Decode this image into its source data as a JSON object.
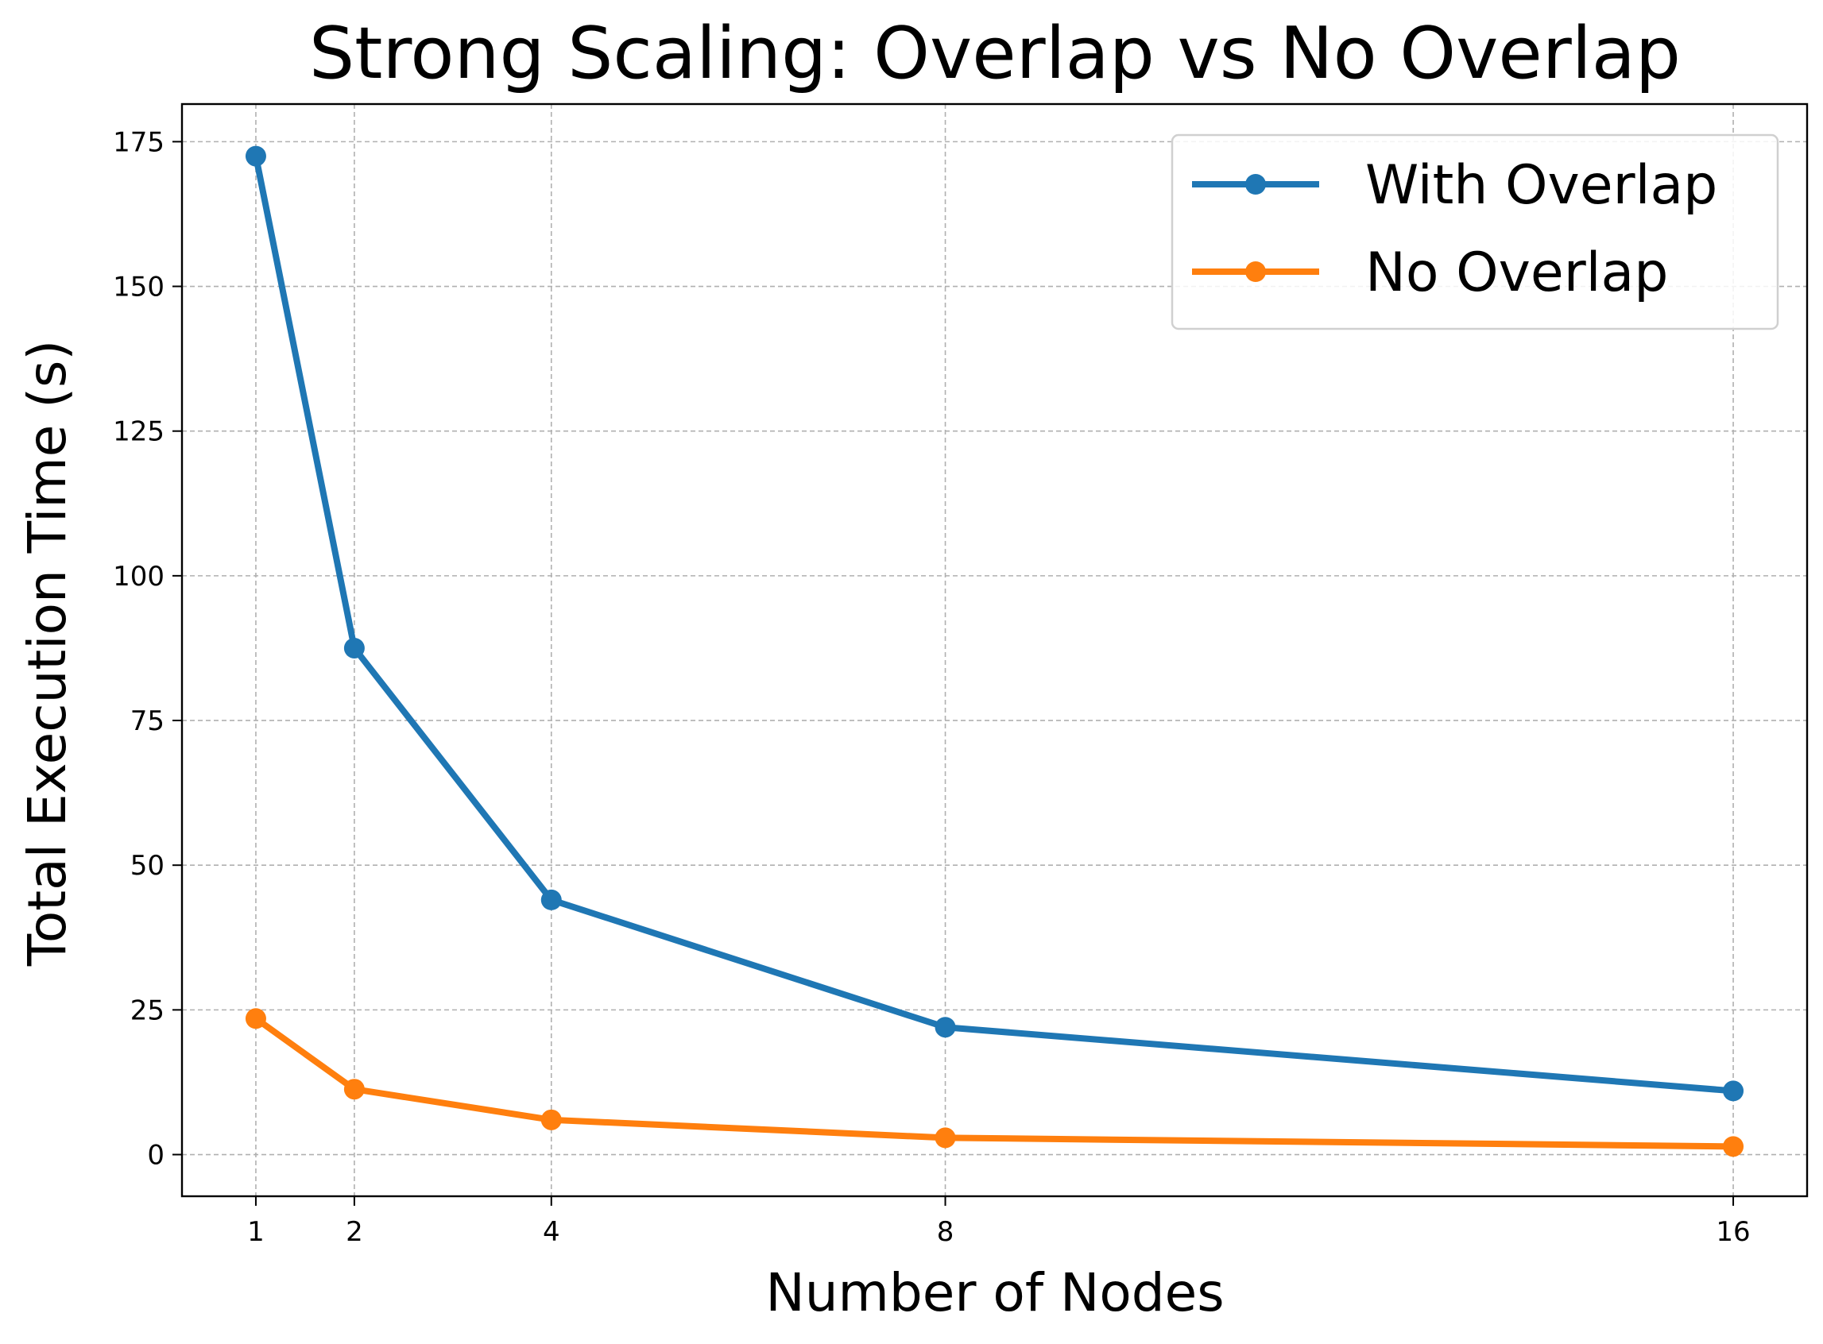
{
  "chart_data": {
    "type": "line",
    "title": "Strong Scaling: Overlap vs No Overlap",
    "xlabel": "Number of Nodes",
    "ylabel": "Total Execution Time (s)",
    "x": [
      1,
      2,
      4,
      8,
      16
    ],
    "x_tick_labels": [
      "1",
      "2",
      "4",
      "8",
      "16"
    ],
    "y_ticks": [
      0,
      25,
      50,
      75,
      100,
      125,
      150,
      175
    ],
    "y_tick_labels": [
      "0",
      "25",
      "50",
      "75",
      "100",
      "125",
      "150",
      "175"
    ],
    "xlim": [
      0.25,
      16.75
    ],
    "ylim": [
      -7.2,
      181.5
    ],
    "grid": true,
    "legend_position": "top-right",
    "series": [
      {
        "name": "With Overlap",
        "color": "#1f77b4",
        "values": [
          172.5,
          87.5,
          44.0,
          22.0,
          11.0
        ]
      },
      {
        "name": "No Overlap",
        "color": "#ff7f0e",
        "values": [
          23.5,
          11.3,
          6.0,
          2.9,
          1.4
        ]
      }
    ]
  }
}
